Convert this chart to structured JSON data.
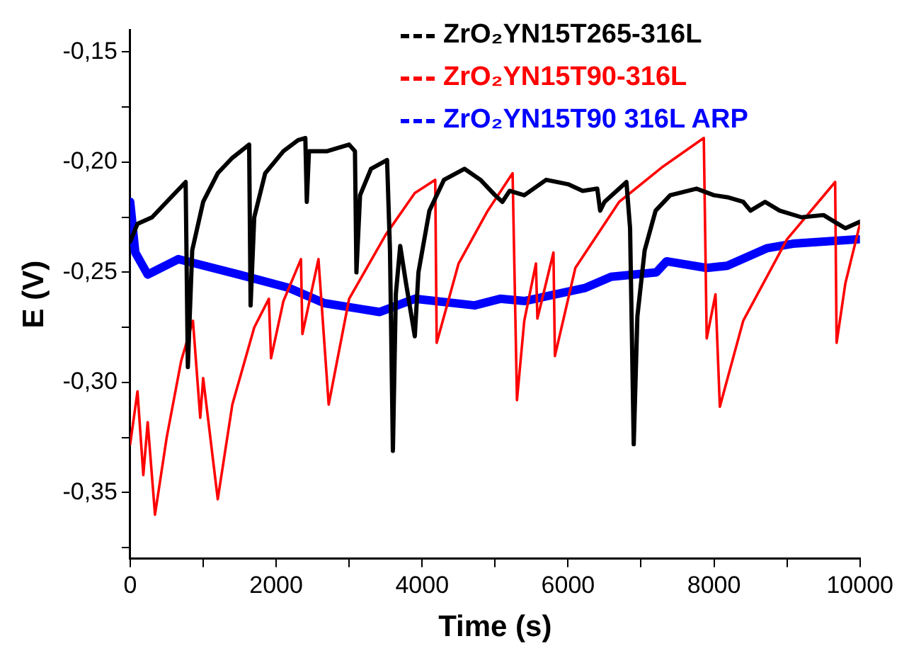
{
  "chart_data": {
    "type": "line",
    "xlabel": "Time (s)",
    "ylabel": "E (V)",
    "xlim": [
      0,
      10000
    ],
    "ylim": [
      -0.38,
      -0.14
    ],
    "xticks": [
      0,
      {
        "value": 1000,
        "label": null
      },
      2000,
      {
        "value": 3000,
        "label": null
      },
      4000,
      {
        "value": 5000,
        "label": null
      },
      6000,
      {
        "value": 7000,
        "label": null
      },
      8000,
      {
        "value": 9000,
        "label": null
      },
      10000
    ],
    "yticks": [
      {
        "value": -0.375,
        "label": null
      },
      {
        "value": -0.35,
        "label": "-0,35"
      },
      {
        "value": -0.325,
        "label": null
      },
      {
        "value": -0.3,
        "label": "-0,30"
      },
      {
        "value": -0.275,
        "label": null
      },
      {
        "value": -0.25,
        "label": "-0,25"
      },
      {
        "value": -0.225,
        "label": null
      },
      {
        "value": -0.2,
        "label": "-0,20"
      },
      {
        "value": -0.175,
        "label": null
      },
      {
        "value": -0.15,
        "label": "-0,15"
      }
    ],
    "grid": false,
    "legend": "top",
    "marker": "none",
    "line_style": "solid",
    "series": [
      {
        "name": "ZrO₂YN15T265-316L",
        "color": "#000000",
        "x": [
          0,
          100,
          300,
          500,
          760,
          790,
          850,
          1000,
          1200,
          1400,
          1630,
          1650,
          1700,
          1850,
          2100,
          2300,
          2400,
          2420,
          2450,
          2700,
          3000,
          3080,
          3100,
          3150,
          3300,
          3520,
          3560,
          3600,
          3640,
          3700,
          3780,
          3900,
          3950,
          4100,
          4300,
          4580,
          4800,
          5000,
          5100,
          5200,
          5400,
          5700,
          6000,
          6200,
          6400,
          6440,
          6500,
          6800,
          6850,
          6900,
          6950,
          7050,
          7200,
          7400,
          7760,
          8000,
          8200,
          8400,
          8500,
          8700,
          8900,
          9200,
          9500,
          9700,
          9800,
          10000
        ],
        "values": [
          -0.236,
          -0.228,
          -0.225,
          -0.218,
          -0.209,
          -0.293,
          -0.24,
          -0.218,
          -0.205,
          -0.198,
          -0.192,
          -0.265,
          -0.225,
          -0.205,
          -0.195,
          -0.19,
          -0.189,
          -0.218,
          -0.195,
          -0.195,
          -0.192,
          -0.195,
          -0.25,
          -0.215,
          -0.203,
          -0.199,
          -0.24,
          -0.331,
          -0.26,
          -0.238,
          -0.255,
          -0.279,
          -0.25,
          -0.222,
          -0.208,
          -0.203,
          -0.208,
          -0.215,
          -0.218,
          -0.213,
          -0.215,
          -0.208,
          -0.21,
          -0.213,
          -0.212,
          -0.222,
          -0.218,
          -0.209,
          -0.23,
          -0.328,
          -0.27,
          -0.24,
          -0.222,
          -0.215,
          -0.212,
          -0.215,
          -0.216,
          -0.218,
          -0.222,
          -0.218,
          -0.222,
          -0.225,
          -0.224,
          -0.228,
          -0.23,
          -0.227
        ]
      },
      {
        "name": "ZrO₂YN15T90-316L",
        "color": "#ff0000",
        "x": [
          0,
          100,
          180,
          240,
          340,
          500,
          700,
          860,
          960,
          1000,
          1200,
          1400,
          1700,
          1900,
          1930,
          2100,
          2340,
          2360,
          2580,
          2720,
          3000,
          3500,
          3900,
          4180,
          4200,
          4500,
          4900,
          5240,
          5300,
          5400,
          5560,
          5580,
          5800,
          5820,
          6100,
          6700,
          7300,
          7860,
          7900,
          8020,
          8080,
          8400,
          9000,
          9660,
          9680,
          9800,
          10000
        ],
        "values": [
          -0.328,
          -0.304,
          -0.342,
          -0.318,
          -0.36,
          -0.325,
          -0.29,
          -0.272,
          -0.316,
          -0.298,
          -0.353,
          -0.31,
          -0.275,
          -0.262,
          -0.289,
          -0.263,
          -0.244,
          -0.278,
          -0.244,
          -0.31,
          -0.262,
          -0.233,
          -0.214,
          -0.208,
          -0.282,
          -0.246,
          -0.222,
          -0.205,
          -0.308,
          -0.272,
          -0.246,
          -0.271,
          -0.241,
          -0.288,
          -0.248,
          -0.218,
          -0.202,
          -0.189,
          -0.28,
          -0.26,
          -0.311,
          -0.272,
          -0.235,
          -0.209,
          -0.282,
          -0.255,
          -0.228
        ]
      },
      {
        "name": "ZrO₂YN15T90 316L ARP",
        "color": "#0000ff",
        "x": [
          0,
          70,
          240,
          660,
          1490,
          2170,
          2660,
          3420,
          3900,
          4720,
          5070,
          5410,
          6240,
          6590,
          7210,
          7350,
          7900,
          8180,
          8730,
          9080,
          9980
        ],
        "values": [
          -0.218,
          -0.241,
          -0.251,
          -0.244,
          -0.251,
          -0.257,
          -0.264,
          -0.268,
          -0.262,
          -0.265,
          -0.262,
          -0.263,
          -0.257,
          -0.252,
          -0.25,
          -0.245,
          -0.248,
          -0.247,
          -0.239,
          -0.237,
          -0.235
        ]
      }
    ]
  }
}
